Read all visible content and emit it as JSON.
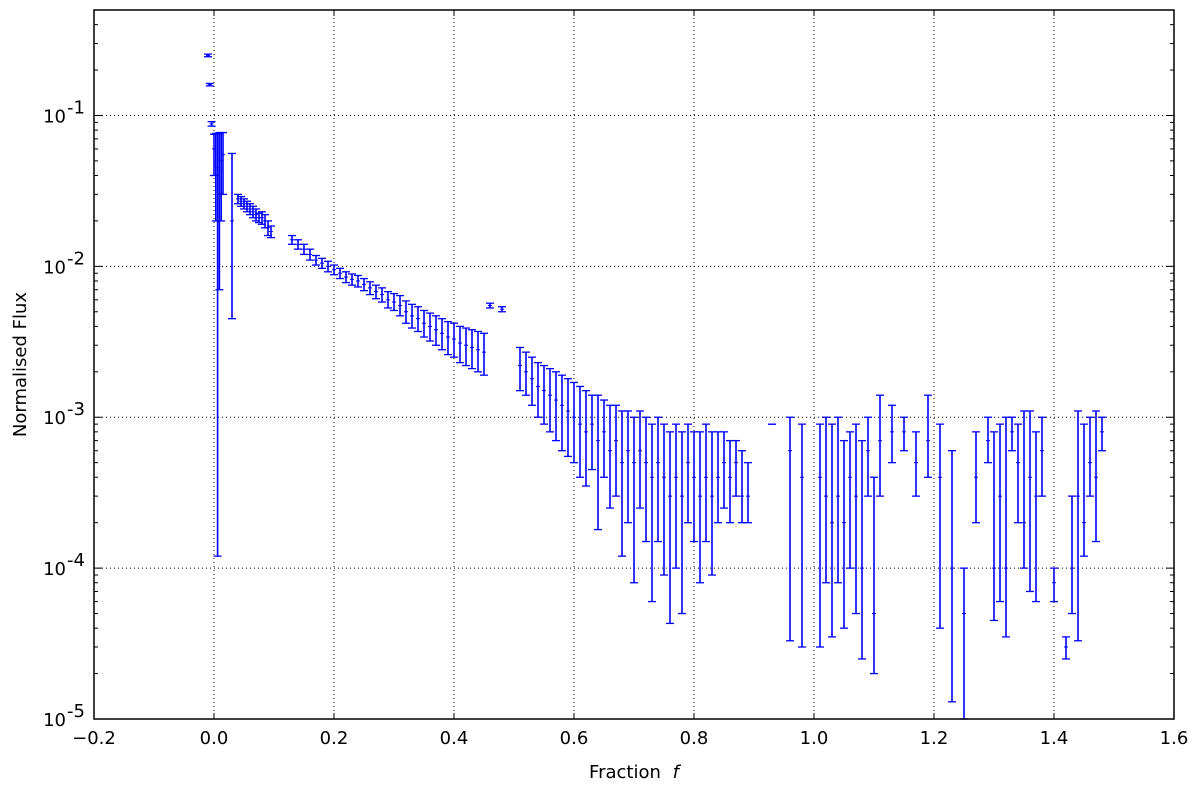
{
  "chart_data": {
    "type": "scatter",
    "style": "errorbar",
    "xlabel": "Fraction",
    "xlabel_symbol": "f",
    "ylabel": "Normalised Flux",
    "xlim": [
      -0.2,
      1.6
    ],
    "ylim": [
      1e-05,
      0.5
    ],
    "yscale": "log",
    "grid": true,
    "legend": false,
    "color": "#0000ff",
    "x_ticks": [
      {
        "value": -0.2,
        "label": "−0.2"
      },
      {
        "value": 0.0,
        "label": "0.0"
      },
      {
        "value": 0.2,
        "label": "0.2"
      },
      {
        "value": 0.4,
        "label": "0.4"
      },
      {
        "value": 0.6,
        "label": "0.6"
      },
      {
        "value": 0.8,
        "label": "0.8"
      },
      {
        "value": 1.0,
        "label": "1.0"
      },
      {
        "value": 1.2,
        "label": "1.2"
      },
      {
        "value": 1.4,
        "label": "1.4"
      },
      {
        "value": 1.6,
        "label": "1.6"
      }
    ],
    "y_ticks": [
      {
        "value": 1e-05,
        "base": "10",
        "exp": "-5"
      },
      {
        "value": 0.0001,
        "base": "10",
        "exp": "-4"
      },
      {
        "value": 0.001,
        "base": "10",
        "exp": "-3"
      },
      {
        "value": 0.01,
        "base": "10",
        "exp": "-2"
      },
      {
        "value": 0.1,
        "base": "10",
        "exp": "-1"
      }
    ],
    "points": [
      {
        "x": -0.01,
        "y": 0.25,
        "lo": 0.245,
        "hi": 0.255
      },
      {
        "x": -0.007,
        "y": 0.16,
        "lo": 0.157,
        "hi": 0.163
      },
      {
        "x": -0.004,
        "y": 0.088,
        "lo": 0.085,
        "hi": 0.091
      },
      {
        "x": 0.0,
        "y": 0.06,
        "lo": 0.04,
        "hi": 0.075
      },
      {
        "x": 0.003,
        "y": 0.045,
        "lo": 0.02,
        "hi": 0.076
      },
      {
        "x": 0.006,
        "y": 0.04,
        "lo": 0.00012,
        "hi": 0.076
      },
      {
        "x": 0.009,
        "y": 0.03,
        "lo": 0.007,
        "hi": 0.077
      },
      {
        "x": 0.012,
        "y": 0.05,
        "lo": 0.02,
        "hi": 0.077
      },
      {
        "x": 0.015,
        "y": 0.055,
        "lo": 0.03,
        "hi": 0.077
      },
      {
        "x": 0.03,
        "y": 0.02,
        "lo": 0.0045,
        "hi": 0.056
      },
      {
        "x": 0.04,
        "y": 0.028,
        "lo": 0.026,
        "hi": 0.03
      },
      {
        "x": 0.045,
        "y": 0.027,
        "lo": 0.025,
        "hi": 0.029
      },
      {
        "x": 0.05,
        "y": 0.026,
        "lo": 0.024,
        "hi": 0.028
      },
      {
        "x": 0.055,
        "y": 0.025,
        "lo": 0.023,
        "hi": 0.027
      },
      {
        "x": 0.06,
        "y": 0.024,
        "lo": 0.022,
        "hi": 0.026
      },
      {
        "x": 0.065,
        "y": 0.023,
        "lo": 0.021,
        "hi": 0.025
      },
      {
        "x": 0.07,
        "y": 0.022,
        "lo": 0.02,
        "hi": 0.024
      },
      {
        "x": 0.075,
        "y": 0.021,
        "lo": 0.0195,
        "hi": 0.0225
      },
      {
        "x": 0.08,
        "y": 0.021,
        "lo": 0.019,
        "hi": 0.023
      },
      {
        "x": 0.085,
        "y": 0.02,
        "lo": 0.018,
        "hi": 0.022
      },
      {
        "x": 0.09,
        "y": 0.018,
        "lo": 0.016,
        "hi": 0.02
      },
      {
        "x": 0.095,
        "y": 0.017,
        "lo": 0.0155,
        "hi": 0.0185
      },
      {
        "x": 0.13,
        "y": 0.015,
        "lo": 0.014,
        "hi": 0.016
      },
      {
        "x": 0.14,
        "y": 0.014,
        "lo": 0.013,
        "hi": 0.015
      },
      {
        "x": 0.15,
        "y": 0.013,
        "lo": 0.012,
        "hi": 0.014
      },
      {
        "x": 0.16,
        "y": 0.012,
        "lo": 0.011,
        "hi": 0.013
      },
      {
        "x": 0.17,
        "y": 0.011,
        "lo": 0.0102,
        "hi": 0.0118
      },
      {
        "x": 0.18,
        "y": 0.0105,
        "lo": 0.0097,
        "hi": 0.0113
      },
      {
        "x": 0.19,
        "y": 0.01,
        "lo": 0.0092,
        "hi": 0.0108
      },
      {
        "x": 0.2,
        "y": 0.0095,
        "lo": 0.0088,
        "hi": 0.0102
      },
      {
        "x": 0.21,
        "y": 0.009,
        "lo": 0.0083,
        "hi": 0.0097
      },
      {
        "x": 0.22,
        "y": 0.0085,
        "lo": 0.0078,
        "hi": 0.0092
      },
      {
        "x": 0.23,
        "y": 0.0082,
        "lo": 0.0075,
        "hi": 0.0089
      },
      {
        "x": 0.24,
        "y": 0.008,
        "lo": 0.0073,
        "hi": 0.0087
      },
      {
        "x": 0.25,
        "y": 0.0076,
        "lo": 0.0069,
        "hi": 0.0083
      },
      {
        "x": 0.26,
        "y": 0.0072,
        "lo": 0.0065,
        "hi": 0.0079
      },
      {
        "x": 0.27,
        "y": 0.0068,
        "lo": 0.0061,
        "hi": 0.0075
      },
      {
        "x": 0.28,
        "y": 0.0065,
        "lo": 0.0058,
        "hi": 0.0072
      },
      {
        "x": 0.29,
        "y": 0.006,
        "lo": 0.0053,
        "hi": 0.0068
      },
      {
        "x": 0.3,
        "y": 0.0058,
        "lo": 0.0051,
        "hi": 0.0066
      },
      {
        "x": 0.31,
        "y": 0.0055,
        "lo": 0.0047,
        "hi": 0.0064
      },
      {
        "x": 0.32,
        "y": 0.005,
        "lo": 0.0042,
        "hi": 0.0059
      },
      {
        "x": 0.33,
        "y": 0.0047,
        "lo": 0.0039,
        "hi": 0.0056
      },
      {
        "x": 0.34,
        "y": 0.0045,
        "lo": 0.0037,
        "hi": 0.0054
      },
      {
        "x": 0.35,
        "y": 0.0042,
        "lo": 0.0034,
        "hi": 0.0051
      },
      {
        "x": 0.36,
        "y": 0.004,
        "lo": 0.0032,
        "hi": 0.0049
      },
      {
        "x": 0.37,
        "y": 0.0038,
        "lo": 0.003,
        "hi": 0.0047
      },
      {
        "x": 0.38,
        "y": 0.0036,
        "lo": 0.0028,
        "hi": 0.0045
      },
      {
        "x": 0.39,
        "y": 0.0034,
        "lo": 0.0026,
        "hi": 0.0043
      },
      {
        "x": 0.4,
        "y": 0.0033,
        "lo": 0.0025,
        "hi": 0.0042
      },
      {
        "x": 0.41,
        "y": 0.0031,
        "lo": 0.0023,
        "hi": 0.004
      },
      {
        "x": 0.42,
        "y": 0.003,
        "lo": 0.0022,
        "hi": 0.0039
      },
      {
        "x": 0.43,
        "y": 0.0029,
        "lo": 0.0021,
        "hi": 0.0038
      },
      {
        "x": 0.44,
        "y": 0.0028,
        "lo": 0.002,
        "hi": 0.0037
      },
      {
        "x": 0.45,
        "y": 0.0027,
        "lo": 0.0019,
        "hi": 0.0036
      },
      {
        "x": 0.46,
        "y": 0.0055,
        "lo": 0.0053,
        "hi": 0.0057
      },
      {
        "x": 0.48,
        "y": 0.0052,
        "lo": 0.005,
        "hi": 0.0054
      },
      {
        "x": 0.51,
        "y": 0.0022,
        "lo": 0.0015,
        "hi": 0.0029
      },
      {
        "x": 0.52,
        "y": 0.002,
        "lo": 0.0014,
        "hi": 0.0027
      },
      {
        "x": 0.53,
        "y": 0.0018,
        "lo": 0.0012,
        "hi": 0.0025
      },
      {
        "x": 0.54,
        "y": 0.0016,
        "lo": 0.001,
        "hi": 0.0023
      },
      {
        "x": 0.55,
        "y": 0.0015,
        "lo": 0.0009,
        "hi": 0.0022
      },
      {
        "x": 0.56,
        "y": 0.0014,
        "lo": 0.0008,
        "hi": 0.0021
      },
      {
        "x": 0.57,
        "y": 0.0013,
        "lo": 0.0007,
        "hi": 0.002
      },
      {
        "x": 0.58,
        "y": 0.0012,
        "lo": 0.0006,
        "hi": 0.0019
      },
      {
        "x": 0.59,
        "y": 0.0011,
        "lo": 0.00055,
        "hi": 0.0018
      },
      {
        "x": 0.6,
        "y": 0.001,
        "lo": 0.0005,
        "hi": 0.0017
      },
      {
        "x": 0.61,
        "y": 0.0009,
        "lo": 0.0004,
        "hi": 0.0016
      },
      {
        "x": 0.62,
        "y": 0.0008,
        "lo": 0.00035,
        "hi": 0.0015
      },
      {
        "x": 0.63,
        "y": 0.0009,
        "lo": 0.00045,
        "hi": 0.0014
      },
      {
        "x": 0.64,
        "y": 0.0007,
        "lo": 0.00018,
        "hi": 0.0014
      },
      {
        "x": 0.65,
        "y": 0.0008,
        "lo": 0.0004,
        "hi": 0.0013
      },
      {
        "x": 0.66,
        "y": 0.0006,
        "lo": 0.00025,
        "hi": 0.0012
      },
      {
        "x": 0.67,
        "y": 0.0007,
        "lo": 0.0003,
        "hi": 0.0012
      },
      {
        "x": 0.68,
        "y": 0.0005,
        "lo": 0.00012,
        "hi": 0.0011
      },
      {
        "x": 0.69,
        "y": 0.0006,
        "lo": 0.0002,
        "hi": 0.0011
      },
      {
        "x": 0.7,
        "y": 0.0005,
        "lo": 8e-05,
        "hi": 0.001
      },
      {
        "x": 0.71,
        "y": 0.0006,
        "lo": 0.00025,
        "hi": 0.0011
      },
      {
        "x": 0.72,
        "y": 0.0005,
        "lo": 0.00015,
        "hi": 0.001
      },
      {
        "x": 0.73,
        "y": 0.0004,
        "lo": 6e-05,
        "hi": 0.0009
      },
      {
        "x": 0.74,
        "y": 0.0005,
        "lo": 0.00015,
        "hi": 0.001
      },
      {
        "x": 0.75,
        "y": 0.0004,
        "lo": 9e-05,
        "hi": 0.0009
      },
      {
        "x": 0.76,
        "y": 0.0003,
        "lo": 4.3e-05,
        "hi": 0.0008
      },
      {
        "x": 0.77,
        "y": 0.0004,
        "lo": 0.0001,
        "hi": 0.0009
      },
      {
        "x": 0.78,
        "y": 0.0003,
        "lo": 5e-05,
        "hi": 0.0008
      },
      {
        "x": 0.79,
        "y": 0.0005,
        "lo": 0.0002,
        "hi": 0.0009
      },
      {
        "x": 0.8,
        "y": 0.0004,
        "lo": 0.00015,
        "hi": 0.0008
      },
      {
        "x": 0.81,
        "y": 0.0003,
        "lo": 8e-05,
        "hi": 0.0008
      },
      {
        "x": 0.82,
        "y": 0.0004,
        "lo": 0.00015,
        "hi": 0.0009
      },
      {
        "x": 0.83,
        "y": 0.0003,
        "lo": 9e-05,
        "hi": 0.0008
      },
      {
        "x": 0.84,
        "y": 0.0004,
        "lo": 0.0002,
        "hi": 0.0008
      },
      {
        "x": 0.85,
        "y": 0.0005,
        "lo": 0.00025,
        "hi": 0.0008
      },
      {
        "x": 0.86,
        "y": 0.0004,
        "lo": 0.0002,
        "hi": 0.0007
      },
      {
        "x": 0.87,
        "y": 0.0005,
        "lo": 0.0003,
        "hi": 0.0007
      },
      {
        "x": 0.88,
        "y": 0.0003,
        "lo": 0.0002,
        "hi": 0.0006
      },
      {
        "x": 0.89,
        "y": 0.0003,
        "lo": 0.0002,
        "hi": 0.0005
      },
      {
        "x": 0.93,
        "y": 0.0009,
        "lo": 0.0009,
        "hi": 0.0009
      },
      {
        "x": 0.96,
        "y": 0.0006,
        "lo": 3.3e-05,
        "hi": 0.001
      },
      {
        "x": 0.98,
        "y": 0.0004,
        "lo": 3e-05,
        "hi": 0.0009
      },
      {
        "x": 1.01,
        "y": 0.0004,
        "lo": 3e-05,
        "hi": 0.0009
      },
      {
        "x": 1.02,
        "y": 0.0003,
        "lo": 8e-05,
        "hi": 0.001
      },
      {
        "x": 1.03,
        "y": 0.0002,
        "lo": 3.5e-05,
        "hi": 0.0009
      },
      {
        "x": 1.04,
        "y": 0.0003,
        "lo": 8e-05,
        "hi": 0.001
      },
      {
        "x": 1.05,
        "y": 0.0002,
        "lo": 4e-05,
        "hi": 0.0007
      },
      {
        "x": 1.06,
        "y": 0.0004,
        "lo": 0.0001,
        "hi": 0.0008
      },
      {
        "x": 1.07,
        "y": 0.0003,
        "lo": 5e-05,
        "hi": 0.0009
      },
      {
        "x": 1.08,
        "y": 0.0001,
        "lo": 2.5e-05,
        "hi": 0.0007
      },
      {
        "x": 1.09,
        "y": 0.0006,
        "lo": 0.0003,
        "hi": 0.001
      },
      {
        "x": 1.1,
        "y": 5e-05,
        "lo": 2e-05,
        "hi": 0.0004
      },
      {
        "x": 1.11,
        "y": 0.0007,
        "lo": 0.0003,
        "hi": 0.0014
      },
      {
        "x": 1.13,
        "y": 0.0008,
        "lo": 0.0005,
        "hi": 0.0012
      },
      {
        "x": 1.15,
        "y": 0.0008,
        "lo": 0.0006,
        "hi": 0.001
      },
      {
        "x": 1.17,
        "y": 0.0005,
        "lo": 0.0003,
        "hi": 0.0008
      },
      {
        "x": 1.19,
        "y": 0.0007,
        "lo": 0.0004,
        "hi": 0.0014
      },
      {
        "x": 1.21,
        "y": 0.0004,
        "lo": 4e-05,
        "hi": 0.0009
      },
      {
        "x": 1.23,
        "y": 0.0001,
        "lo": 1.3e-05,
        "hi": 0.0006
      },
      {
        "x": 1.25,
        "y": 5e-05,
        "lo": 1e-05,
        "hi": 0.0001
      },
      {
        "x": 1.27,
        "y": 0.0004,
        "lo": 0.0002,
        "hi": 0.0008
      },
      {
        "x": 1.29,
        "y": 0.0007,
        "lo": 0.0005,
        "hi": 0.001
      },
      {
        "x": 1.3,
        "y": 0.0001,
        "lo": 4.5e-05,
        "hi": 0.0008
      },
      {
        "x": 1.31,
        "y": 0.0003,
        "lo": 6e-05,
        "hi": 0.0009
      },
      {
        "x": 1.32,
        "y": 0.0001,
        "lo": 3.5e-05,
        "hi": 0.001
      },
      {
        "x": 1.33,
        "y": 0.0008,
        "lo": 0.0006,
        "hi": 0.001
      },
      {
        "x": 1.34,
        "y": 0.0005,
        "lo": 0.0002,
        "hi": 0.0009
      },
      {
        "x": 1.35,
        "y": 0.0002,
        "lo": 0.0001,
        "hi": 0.0011
      },
      {
        "x": 1.36,
        "y": 0.0004,
        "lo": 7e-05,
        "hi": 0.0011
      },
      {
        "x": 1.37,
        "y": 0.0003,
        "lo": 6e-05,
        "hi": 0.0008
      },
      {
        "x": 1.38,
        "y": 0.0006,
        "lo": 0.0003,
        "hi": 0.001
      },
      {
        "x": 1.4,
        "y": 8e-05,
        "lo": 6e-05,
        "hi": 0.0001
      },
      {
        "x": 1.42,
        "y": 3e-05,
        "lo": 2.5e-05,
        "hi": 3.5e-05
      },
      {
        "x": 1.43,
        "y": 0.0001,
        "lo": 5e-05,
        "hi": 0.0003
      },
      {
        "x": 1.44,
        "y": 0.0003,
        "lo": 3.3e-05,
        "hi": 0.0011
      },
      {
        "x": 1.45,
        "y": 0.0002,
        "lo": 0.00012,
        "hi": 0.0009
      },
      {
        "x": 1.46,
        "y": 0.0005,
        "lo": 0.0003,
        "hi": 0.001
      },
      {
        "x": 1.47,
        "y": 0.0004,
        "lo": 0.00015,
        "hi": 0.0011
      },
      {
        "x": 1.48,
        "y": 0.0008,
        "lo": 0.0006,
        "hi": 0.001
      }
    ]
  }
}
